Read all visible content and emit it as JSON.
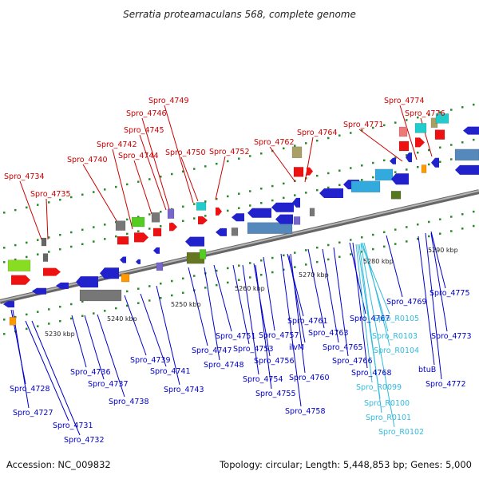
{
  "title": "Serratia proteamaculans 568, complete genome",
  "footer": {
    "accession": "Accession: NC_009832",
    "summary": "Topology: circular; Length: 5,448,853 bp; Genes: 5,000"
  },
  "colors": {
    "top_labels": "#cc0000",
    "bottom_labels": "#0000cc",
    "rna_labels": "#33bbdd",
    "backbone": "#8a8a8a"
  },
  "ticks": [
    "5230 kbp",
    "5240 kbp",
    "5250 kbp",
    "5260 kbp",
    "5270 kbp",
    "5280 kbp",
    "5290 kbp"
  ],
  "top_labels": [
    "Spro_4734",
    "Spro_4735",
    "Spro_4740",
    "Spro_4742",
    "Spro_4744",
    "Spro_4745",
    "Spro_4746",
    "Spro_4749",
    "Spro_4750",
    "Spro_4752",
    "Spro_4762",
    "Spro_4764",
    "Spro_4771",
    "Spro_4774",
    "Spro_4776"
  ],
  "bottom_labels": [
    "Spro_4728",
    "Spro_4727",
    "Spro_4731",
    "Spro_4732",
    "Spro_4736",
    "Spro_4737",
    "Spro_4738",
    "Spro_4739",
    "Spro_4741",
    "Spro_4743",
    "Spro_4747",
    "Spro_4748",
    "Spro_4751",
    "Spro_4753",
    "Spro_4754",
    "Spro_4755",
    "Spro_4756",
    "Spro_4757",
    "ilvM",
    "Spro_4758",
    "Spro_4760",
    "Spro_4761",
    "Spro_4763",
    "Spro_4765",
    "Spro_4766",
    "Spro_4767",
    "Spro_4768",
    "Spro_4769",
    "btuB",
    "Spro_4773",
    "Spro_4772",
    "Spro_4775"
  ],
  "rna_labels": [
    "Spro_R0105",
    "Spro_R0103",
    "Spro_R0104",
    "Spro_R0099",
    "Spro_R0100",
    "Spro_R0101",
    "Spro_R0102"
  ]
}
